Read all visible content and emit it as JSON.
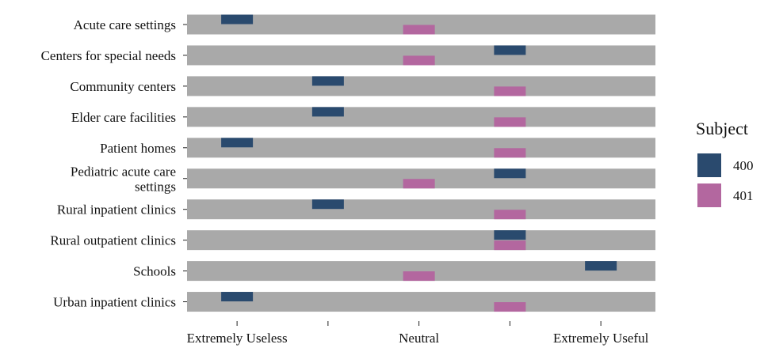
{
  "chart_data": {
    "type": "dot",
    "categories": [
      "Acute care settings",
      "Centers for special needs",
      "Community centers",
      "Elder care facilities",
      "Patient homes",
      "Pediatric acute care settings",
      "Rural inpatient clinics",
      "Rural outpatient clinics",
      "Schools",
      "Urban inpatient clinics"
    ],
    "category_label_lines": [
      [
        "Acute care settings"
      ],
      [
        "Centers for special needs"
      ],
      [
        "Community centers"
      ],
      [
        "Elder care facilities"
      ],
      [
        "Patient homes"
      ],
      [
        "Pediatric acute care",
        "settings"
      ],
      [
        "Rural inpatient clinics"
      ],
      [
        "Rural outpatient clinics"
      ],
      [
        "Schools"
      ],
      [
        "Urban inpatient clinics"
      ]
    ],
    "x_ticks": [
      1,
      2,
      3,
      4,
      5
    ],
    "x_tick_labels": [
      "Extremely Useless",
      "",
      "Neutral",
      "",
      "Extremely Useful"
    ],
    "xlim": [
      0.45,
      5.6
    ],
    "legend_title": "Subject",
    "legend_position": "right",
    "series": [
      {
        "name": "400",
        "color": "#2a4a6e",
        "values": [
          1,
          4,
          2,
          2,
          1,
          4,
          2,
          4,
          5,
          1
        ]
      },
      {
        "name": "401",
        "color": "#b3679f",
        "values": [
          3,
          3,
          4,
          4,
          4,
          3,
          4,
          4,
          3,
          4
        ]
      }
    ],
    "band_color": "#a9a9a9"
  }
}
